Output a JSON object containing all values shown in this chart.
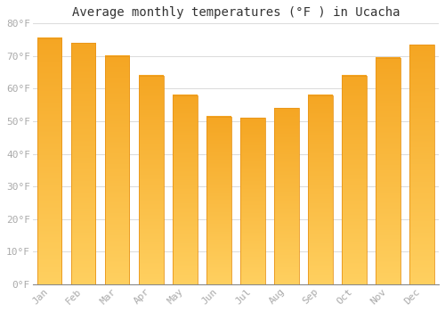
{
  "title": "Average monthly temperatures (°F ) in Ucacha",
  "months": [
    "Jan",
    "Feb",
    "Mar",
    "Apr",
    "May",
    "Jun",
    "Jul",
    "Aug",
    "Sep",
    "Oct",
    "Nov",
    "Dec"
  ],
  "values": [
    75.5,
    74.0,
    70.0,
    64.0,
    58.0,
    51.5,
    51.0,
    54.0,
    58.0,
    64.0,
    69.5,
    73.5
  ],
  "bar_color_top": "#F5A623",
  "bar_color_bottom": "#FFD060",
  "bar_edge_color": "#E8951A",
  "background_color": "#FFFFFF",
  "grid_color": "#DDDDDD",
  "ylim": [
    0,
    80
  ],
  "yticks": [
    0,
    10,
    20,
    30,
    40,
    50,
    60,
    70,
    80
  ],
  "ytick_labels": [
    "0°F",
    "10°F",
    "20°F",
    "30°F",
    "40°F",
    "50°F",
    "60°F",
    "70°F",
    "80°F"
  ],
  "title_fontsize": 10,
  "tick_fontsize": 8,
  "tick_color": "#AAAAAA",
  "font_family": "monospace",
  "bar_width": 0.72
}
